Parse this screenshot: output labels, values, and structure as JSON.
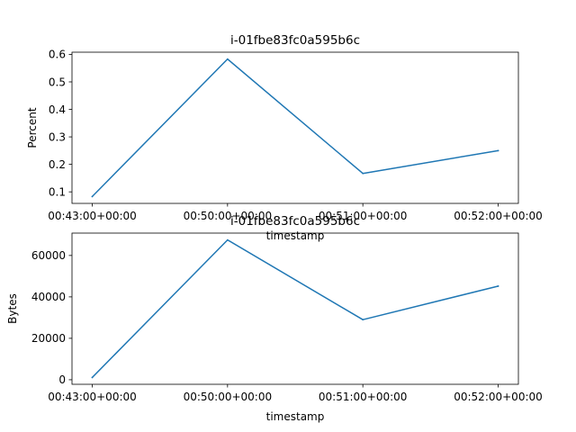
{
  "chart_data": [
    {
      "type": "line",
      "title": "i-01fbe83fc0a595b6c",
      "xlabel": "timestamp",
      "ylabel": "Percent",
      "categories": [
        "00:43:00+00:00",
        "00:50:00+00:00",
        "00:51:00+00:00",
        "00:52:00+00:00"
      ],
      "series": [
        {
          "values": [
            0.083,
            0.583,
            0.167,
            0.25
          ],
          "color": "#1f77b4"
        }
      ],
      "ylim": [
        0.058,
        0.608
      ],
      "yticks": [
        0.1,
        0.2,
        0.3,
        0.4,
        0.5,
        0.6
      ],
      "ytick_labels": [
        "0.1",
        "0.2",
        "0.3",
        "0.4",
        "0.5",
        "0.6"
      ],
      "grid": false,
      "legend": "none"
    },
    {
      "type": "line",
      "title": "i-01fbe83fc0a595b6c",
      "xlabel": "timestamp",
      "ylabel": "Bytes",
      "categories": [
        "00:43:00+00:00",
        "00:50:00+00:00",
        "00:51:00+00:00",
        "00:52:00+00:00"
      ],
      "series": [
        {
          "values": [
            1100,
            67500,
            29000,
            45200
          ],
          "color": "#1f77b4"
        }
      ],
      "ylim": [
        -2200,
        70800
      ],
      "yticks": [
        0,
        20000,
        40000,
        60000
      ],
      "ytick_labels": [
        "0",
        "20000",
        "40000",
        "60000"
      ],
      "grid": false,
      "legend": "none"
    }
  ]
}
